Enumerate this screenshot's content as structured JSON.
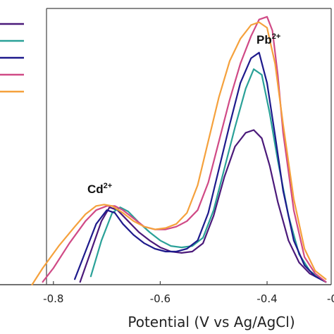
{
  "chart_data": {
    "type": "line",
    "title": "",
    "xlabel": "Potential (V vs Ag/AgCl)",
    "ylabel": "",
    "xlim": [
      -0.9,
      -0.28
    ],
    "ylim": [
      0,
      1.0
    ],
    "x_ticks": [
      -0.8,
      -0.6,
      -0.4
    ],
    "x_tick_labels": [
      "-0.8",
      "-0.6",
      "-0.4"
    ],
    "grid": false,
    "legend": {
      "placement": "top-left",
      "labels_visible": false
    },
    "annotations": [
      {
        "text": "Cd",
        "sup": "2+",
        "x": -0.715,
        "y": 0.38
      },
      {
        "text": "Pb",
        "sup": "2+",
        "x": -0.37,
        "y": 1.0
      }
    ],
    "series": [
      {
        "color": "#4b1a7a",
        "x": [
          -0.75,
          -0.73,
          -0.71,
          -0.695,
          -0.68,
          -0.66,
          -0.64,
          -0.62,
          -0.6,
          -0.58,
          -0.56,
          -0.54,
          -0.52,
          -0.5,
          -0.48,
          -0.46,
          -0.44,
          -0.425,
          -0.41,
          -0.395,
          -0.38,
          -0.36,
          -0.34,
          -0.32,
          -0.3,
          -0.29
        ],
        "y": [
          0.01,
          0.12,
          0.23,
          0.28,
          0.27,
          0.23,
          0.19,
          0.16,
          0.135,
          0.12,
          0.115,
          0.12,
          0.15,
          0.25,
          0.39,
          0.5,
          0.55,
          0.56,
          0.53,
          0.43,
          0.3,
          0.16,
          0.08,
          0.04,
          0.02,
          0.01
        ]
      },
      {
        "color": "#2aa198",
        "x": [
          -0.73,
          -0.71,
          -0.69,
          -0.675,
          -0.66,
          -0.64,
          -0.62,
          -0.6,
          -0.58,
          -0.56,
          -0.54,
          -0.52,
          -0.5,
          -0.48,
          -0.46,
          -0.44,
          -0.425,
          -0.41,
          -0.395,
          -0.38,
          -0.36,
          -0.34,
          -0.32,
          -0.3,
          -0.29
        ],
        "y": [
          0.03,
          0.16,
          0.26,
          0.28,
          0.265,
          0.225,
          0.19,
          0.16,
          0.14,
          0.135,
          0.14,
          0.17,
          0.27,
          0.42,
          0.57,
          0.71,
          0.78,
          0.76,
          0.62,
          0.45,
          0.25,
          0.11,
          0.05,
          0.02,
          0.01
        ]
      },
      {
        "color": "#1e1a8c",
        "x": [
          -0.76,
          -0.74,
          -0.72,
          -0.7,
          -0.685,
          -0.67,
          -0.65,
          -0.63,
          -0.61,
          -0.59,
          -0.57,
          -0.55,
          -0.53,
          -0.51,
          -0.49,
          -0.47,
          -0.45,
          -0.43,
          -0.415,
          -0.4,
          -0.385,
          -0.37,
          -0.35,
          -0.33,
          -0.31,
          -0.29
        ],
        "y": [
          0.02,
          0.12,
          0.22,
          0.27,
          0.26,
          0.22,
          0.18,
          0.15,
          0.13,
          0.12,
          0.12,
          0.13,
          0.16,
          0.26,
          0.42,
          0.58,
          0.73,
          0.82,
          0.84,
          0.73,
          0.54,
          0.34,
          0.16,
          0.07,
          0.03,
          0.01
        ]
      },
      {
        "color": "#d04a86",
        "x": [
          -0.82,
          -0.8,
          -0.77,
          -0.74,
          -0.72,
          -0.7,
          -0.685,
          -0.67,
          -0.65,
          -0.63,
          -0.61,
          -0.59,
          -0.57,
          -0.55,
          -0.53,
          -0.51,
          -0.49,
          -0.47,
          -0.45,
          -0.43,
          -0.415,
          -0.4,
          -0.39,
          -0.38,
          -0.37,
          -0.35,
          -0.33,
          -0.31,
          -0.29
        ],
        "y": [
          0.01,
          0.06,
          0.15,
          0.23,
          0.27,
          0.285,
          0.285,
          0.27,
          0.24,
          0.21,
          0.2,
          0.2,
          0.21,
          0.23,
          0.27,
          0.37,
          0.52,
          0.67,
          0.8,
          0.9,
          0.96,
          0.97,
          0.92,
          0.76,
          0.55,
          0.27,
          0.1,
          0.04,
          0.01
        ]
      },
      {
        "color": "#f5a13c",
        "x": [
          -0.84,
          -0.82,
          -0.79,
          -0.76,
          -0.74,
          -0.72,
          -0.705,
          -0.69,
          -0.67,
          -0.65,
          -0.63,
          -0.61,
          -0.59,
          -0.57,
          -0.55,
          -0.53,
          -0.51,
          -0.49,
          -0.47,
          -0.45,
          -0.43,
          -0.415,
          -0.4,
          -0.385,
          -0.37,
          -0.35,
          -0.33,
          -0.31,
          -0.29
        ],
        "y": [
          0.0,
          0.06,
          0.14,
          0.21,
          0.255,
          0.285,
          0.29,
          0.285,
          0.26,
          0.23,
          0.21,
          0.2,
          0.205,
          0.22,
          0.26,
          0.36,
          0.52,
          0.68,
          0.81,
          0.89,
          0.94,
          0.95,
          0.93,
          0.8,
          0.58,
          0.31,
          0.13,
          0.05,
          0.02
        ]
      }
    ]
  }
}
